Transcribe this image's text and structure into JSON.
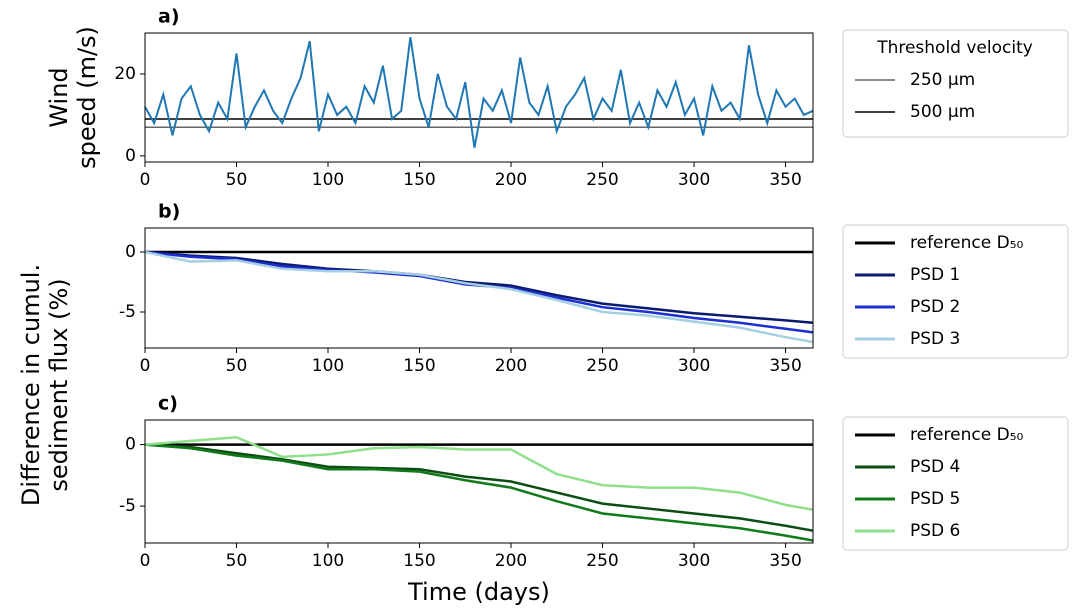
{
  "figure": {
    "ylabel": [
      "Difference in cumul.",
      "sediment flux (%)"
    ]
  },
  "chart_data": [
    {
      "type": "line",
      "panel_label": "a)",
      "ylabel": [
        "Wind",
        "speed (m/s)"
      ],
      "xlim": [
        0,
        365
      ],
      "xticks": [
        0,
        50,
        100,
        150,
        200,
        250,
        300,
        350
      ],
      "ylim": [
        -1.5,
        30
      ],
      "yticks": [
        0,
        20
      ],
      "x": [
        0,
        5,
        10,
        15,
        20,
        25,
        30,
        35,
        40,
        45,
        50,
        55,
        60,
        65,
        70,
        75,
        80,
        85,
        90,
        95,
        100,
        105,
        110,
        115,
        120,
        125,
        130,
        135,
        140,
        145,
        150,
        155,
        160,
        165,
        170,
        175,
        180,
        185,
        190,
        195,
        200,
        205,
        210,
        215,
        220,
        225,
        230,
        235,
        240,
        245,
        250,
        255,
        260,
        265,
        270,
        275,
        280,
        285,
        290,
        295,
        300,
        305,
        310,
        315,
        320,
        325,
        330,
        335,
        340,
        345,
        350,
        355,
        360,
        365
      ],
      "series": [
        {
          "name": "Wind speed",
          "color": "#1f77b4",
          "values": [
            12,
            8,
            15,
            5,
            14,
            17,
            10,
            6,
            13,
            9,
            25,
            7,
            12,
            16,
            11,
            8,
            14,
            19,
            28,
            6,
            15,
            10,
            12,
            8,
            17,
            13,
            22,
            9,
            11,
            29,
            14,
            7,
            20,
            12,
            9,
            18,
            2,
            14,
            11,
            16,
            8,
            24,
            13,
            10,
            17,
            6,
            12,
            15,
            19,
            9,
            14,
            11,
            21,
            8,
            13,
            7,
            16,
            12,
            18,
            10,
            14,
            5,
            17,
            11,
            13,
            9,
            27,
            15,
            8,
            16,
            12,
            14,
            10,
            11
          ]
        }
      ],
      "legend_title": "Threshold velocity",
      "thresholds": [
        {
          "name": "250 μm",
          "value": 7,
          "color": "#666666"
        },
        {
          "name": "500 μm",
          "value": 9,
          "color": "#000000"
        }
      ]
    },
    {
      "type": "line",
      "panel_label": "b)",
      "xlim": [
        0,
        365
      ],
      "xticks": [
        0,
        50,
        100,
        150,
        200,
        250,
        300,
        350
      ],
      "ylim": [
        -8,
        2
      ],
      "yticks": [
        0,
        -5
      ],
      "x": [
        0,
        25,
        50,
        75,
        100,
        125,
        150,
        175,
        200,
        225,
        250,
        275,
        300,
        325,
        350,
        365
      ],
      "series": [
        {
          "name": "reference D₅₀",
          "color": "#000000",
          "values": [
            0,
            0,
            0,
            0,
            0,
            0,
            0,
            0,
            0,
            0,
            0,
            0,
            0,
            0,
            0,
            0
          ]
        },
        {
          "name": "PSD 1",
          "color": "#0a1a6e",
          "values": [
            0,
            -0.3,
            -0.5,
            -1.0,
            -1.4,
            -1.6,
            -1.9,
            -2.5,
            -2.8,
            -3.6,
            -4.3,
            -4.7,
            -5.1,
            -5.4,
            -5.7,
            -5.9
          ]
        },
        {
          "name": "PSD 2",
          "color": "#1c2fd0",
          "values": [
            0,
            -0.4,
            -0.6,
            -1.2,
            -1.5,
            -1.7,
            -2.0,
            -2.7,
            -3.0,
            -3.8,
            -4.6,
            -5.0,
            -5.5,
            -5.9,
            -6.4,
            -6.7
          ]
        },
        {
          "name": "PSD 3",
          "color": "#a6cfe6",
          "values": [
            0,
            -0.8,
            -0.7,
            -1.4,
            -1.6,
            -1.6,
            -1.9,
            -2.6,
            -3.1,
            -4.0,
            -5.0,
            -5.3,
            -5.8,
            -6.3,
            -7.1,
            -7.5
          ]
        }
      ]
    },
    {
      "type": "line",
      "panel_label": "c)",
      "xlabel": "Time (days)",
      "xlim": [
        0,
        365
      ],
      "xticks": [
        0,
        50,
        100,
        150,
        200,
        250,
        300,
        350
      ],
      "ylim": [
        -8,
        2
      ],
      "yticks": [
        0,
        -5
      ],
      "x": [
        0,
        25,
        50,
        75,
        100,
        125,
        150,
        175,
        200,
        225,
        250,
        275,
        300,
        325,
        350,
        365
      ],
      "series": [
        {
          "name": "reference D₅₀",
          "color": "#000000",
          "values": [
            0,
            0,
            0,
            0,
            0,
            0,
            0,
            0,
            0,
            0,
            0,
            0,
            0,
            0,
            0,
            0
          ]
        },
        {
          "name": "PSD 4",
          "color": "#0b4d12",
          "values": [
            0,
            -0.2,
            -0.7,
            -1.2,
            -1.8,
            -1.9,
            -2.0,
            -2.6,
            -3.0,
            -3.9,
            -4.8,
            -5.2,
            -5.6,
            -6.0,
            -6.6,
            -7.0
          ]
        },
        {
          "name": "PSD 5",
          "color": "#117a1a",
          "values": [
            0,
            -0.3,
            -0.9,
            -1.3,
            -2.0,
            -2.0,
            -2.2,
            -2.9,
            -3.5,
            -4.6,
            -5.6,
            -6.0,
            -6.4,
            -6.8,
            -7.4,
            -7.8
          ]
        },
        {
          "name": "PSD 6",
          "color": "#8ee08a",
          "values": [
            0,
            0.3,
            0.6,
            -1.0,
            -0.8,
            -0.3,
            -0.2,
            -0.4,
            -0.4,
            -2.4,
            -3.3,
            -3.5,
            -3.5,
            -3.9,
            -4.9,
            -5.3
          ]
        }
      ]
    }
  ]
}
